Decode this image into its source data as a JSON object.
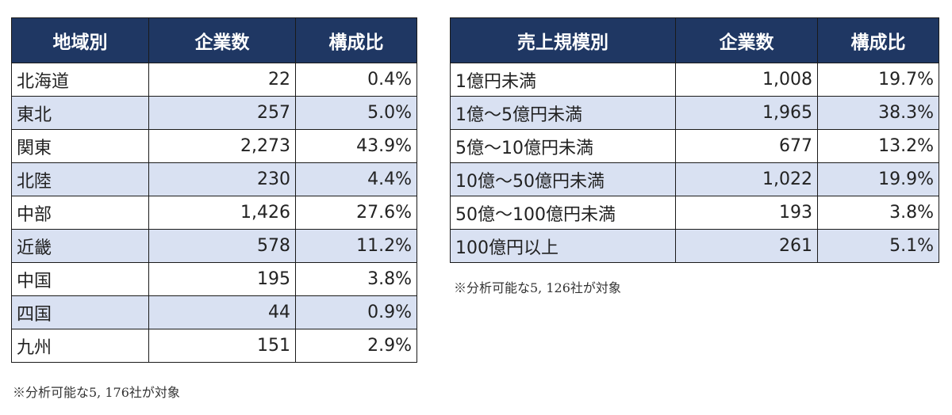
{
  "region_table": {
    "headers": [
      "地域別",
      "企業数",
      "構成比"
    ],
    "rows": [
      {
        "label": "北海道",
        "count": "22",
        "ratio": "0.4%"
      },
      {
        "label": "東北",
        "count": "257",
        "ratio": "5.0%"
      },
      {
        "label": "関東",
        "count": "2,273",
        "ratio": "43.9%"
      },
      {
        "label": "北陸",
        "count": "230",
        "ratio": "4.4%"
      },
      {
        "label": "中部",
        "count": "1,426",
        "ratio": "27.6%"
      },
      {
        "label": "近畿",
        "count": "578",
        "ratio": "11.2%"
      },
      {
        "label": "中国",
        "count": "195",
        "ratio": "3.8%"
      },
      {
        "label": "四国",
        "count": "44",
        "ratio": "0.9%"
      },
      {
        "label": "九州",
        "count": "151",
        "ratio": "2.9%"
      }
    ],
    "note": "※分析可能な5, 176社が対象"
  },
  "sales_table": {
    "headers": [
      "売上規模別",
      "企業数",
      "構成比"
    ],
    "rows": [
      {
        "label": "1億円未満",
        "count": "1,008",
        "ratio": "19.7%"
      },
      {
        "label": "1億～5億円未満",
        "count": "1,965",
        "ratio": "38.3%"
      },
      {
        "label": "5億～10億円未満",
        "count": "677",
        "ratio": "13.2%"
      },
      {
        "label": "10億～50億円未満",
        "count": "1,022",
        "ratio": "19.9%"
      },
      {
        "label": "50億～100億円未満",
        "count": "193",
        "ratio": "3.8%"
      },
      {
        "label": "100億円以上",
        "count": "261",
        "ratio": "5.1%"
      }
    ],
    "note": "※分析可能な5, 126社が対象"
  },
  "colors": {
    "header_bg": "#1f3763",
    "header_text": "#ffffff",
    "alt_row_bg": "#d9e1f2",
    "border": "#1a1a1a"
  }
}
